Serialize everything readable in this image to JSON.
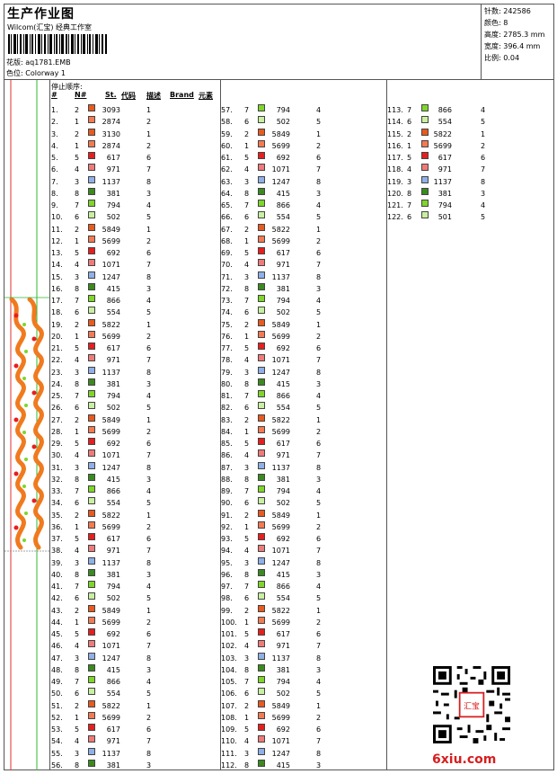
{
  "header": {
    "title": "生产作业图",
    "studio": "Wilcom(汇宝) 经典工作室",
    "design_label": "花版:",
    "design_value": "aq1781.EMB",
    "colorway_label": "色位:",
    "colorway_value": "Colorway 1"
  },
  "stats": [
    {
      "label": "针数:",
      "value": "242586"
    },
    {
      "label": "颜色:",
      "value": "8"
    },
    {
      "label": "高度:",
      "value": "2785.3 mm"
    },
    {
      "label": "宽度:",
      "value": "396.4 mm"
    },
    {
      "label": "比例:",
      "value": "0.04"
    }
  ],
  "table": {
    "caption": "停止顺序:",
    "col_hash": "#",
    "col_n": "N#",
    "col_st": "St.",
    "col_code": "代码",
    "col_desc": "描述",
    "col_brand": "Brand",
    "col_elem": "元素"
  },
  "colors": {
    "1": "#f47a52",
    "2": "#e85a1e",
    "3": "#8fb0e8",
    "4": "#f07a7a",
    "5": "#e81e1e",
    "6": "#c8f0a0",
    "7": "#7ed628",
    "8": "#3a8a1e"
  },
  "stops": [
    [
      1,
      2,
      "3093",
      1
    ],
    [
      2,
      1,
      "2874",
      2
    ],
    [
      3,
      2,
      "3130",
      1
    ],
    [
      4,
      1,
      "2874",
      2
    ],
    [
      5,
      5,
      "617",
      6
    ],
    [
      6,
      4,
      "971",
      7
    ],
    [
      7,
      3,
      "1137",
      8
    ],
    [
      8,
      8,
      "381",
      3
    ],
    [
      9,
      7,
      "794",
      4
    ],
    [
      10,
      6,
      "502",
      5
    ],
    [
      11,
      2,
      "5849",
      1
    ],
    [
      12,
      1,
      "5699",
      2
    ],
    [
      13,
      5,
      "692",
      6
    ],
    [
      14,
      4,
      "1071",
      7
    ],
    [
      15,
      3,
      "1247",
      8
    ],
    [
      16,
      8,
      "415",
      3
    ],
    [
      17,
      7,
      "866",
      4
    ],
    [
      18,
      6,
      "554",
      5
    ],
    [
      19,
      2,
      "5822",
      1
    ],
    [
      20,
      1,
      "5699",
      2
    ],
    [
      21,
      5,
      "617",
      6
    ],
    [
      22,
      4,
      "971",
      7
    ],
    [
      23,
      3,
      "1137",
      8
    ],
    [
      24,
      8,
      "381",
      3
    ],
    [
      25,
      7,
      "794",
      4
    ],
    [
      26,
      6,
      "502",
      5
    ],
    [
      27,
      2,
      "5849",
      1
    ],
    [
      28,
      1,
      "5699",
      2
    ],
    [
      29,
      5,
      "692",
      6
    ],
    [
      30,
      4,
      "1071",
      7
    ],
    [
      31,
      3,
      "1247",
      8
    ],
    [
      32,
      8,
      "415",
      3
    ],
    [
      33,
      7,
      "866",
      4
    ],
    [
      34,
      6,
      "554",
      5
    ],
    [
      35,
      2,
      "5822",
      1
    ],
    [
      36,
      1,
      "5699",
      2
    ],
    [
      37,
      5,
      "617",
      6
    ],
    [
      38,
      4,
      "971",
      7
    ],
    [
      39,
      3,
      "1137",
      8
    ],
    [
      40,
      8,
      "381",
      3
    ],
    [
      41,
      7,
      "794",
      4
    ],
    [
      42,
      6,
      "502",
      5
    ],
    [
      43,
      2,
      "5849",
      1
    ],
    [
      44,
      1,
      "5699",
      2
    ],
    [
      45,
      5,
      "692",
      6
    ],
    [
      46,
      4,
      "1071",
      7
    ],
    [
      47,
      3,
      "1247",
      8
    ],
    [
      48,
      8,
      "415",
      3
    ],
    [
      49,
      7,
      "866",
      4
    ],
    [
      50,
      6,
      "554",
      5
    ],
    [
      51,
      2,
      "5822",
      1
    ],
    [
      52,
      1,
      "5699",
      2
    ],
    [
      53,
      5,
      "617",
      6
    ],
    [
      54,
      4,
      "971",
      7
    ],
    [
      55,
      3,
      "1137",
      8
    ],
    [
      56,
      8,
      "381",
      3
    ],
    [
      57,
      7,
      "794",
      4
    ],
    [
      58,
      6,
      "502",
      5
    ],
    [
      59,
      2,
      "5849",
      1
    ],
    [
      60,
      1,
      "5699",
      2
    ],
    [
      61,
      5,
      "692",
      6
    ],
    [
      62,
      4,
      "1071",
      7
    ],
    [
      63,
      3,
      "1247",
      8
    ],
    [
      64,
      8,
      "415",
      3
    ],
    [
      65,
      7,
      "866",
      4
    ],
    [
      66,
      6,
      "554",
      5
    ],
    [
      67,
      2,
      "5822",
      1
    ],
    [
      68,
      1,
      "5699",
      2
    ],
    [
      69,
      5,
      "617",
      6
    ],
    [
      70,
      4,
      "971",
      7
    ],
    [
      71,
      3,
      "1137",
      8
    ],
    [
      72,
      8,
      "381",
      3
    ],
    [
      73,
      7,
      "794",
      4
    ],
    [
      74,
      6,
      "502",
      5
    ],
    [
      75,
      2,
      "5849",
      1
    ],
    [
      76,
      1,
      "5699",
      2
    ],
    [
      77,
      5,
      "692",
      6
    ],
    [
      78,
      4,
      "1071",
      7
    ],
    [
      79,
      3,
      "1247",
      8
    ],
    [
      80,
      8,
      "415",
      3
    ],
    [
      81,
      7,
      "866",
      4
    ],
    [
      82,
      6,
      "554",
      5
    ],
    [
      83,
      2,
      "5822",
      1
    ],
    [
      84,
      1,
      "5699",
      2
    ],
    [
      85,
      5,
      "617",
      6
    ],
    [
      86,
      4,
      "971",
      7
    ],
    [
      87,
      3,
      "1137",
      8
    ],
    [
      88,
      8,
      "381",
      3
    ],
    [
      89,
      7,
      "794",
      4
    ],
    [
      90,
      6,
      "502",
      5
    ],
    [
      91,
      2,
      "5849",
      1
    ],
    [
      92,
      1,
      "5699",
      2
    ],
    [
      93,
      5,
      "692",
      6
    ],
    [
      94,
      4,
      "1071",
      7
    ],
    [
      95,
      3,
      "1247",
      8
    ],
    [
      96,
      8,
      "415",
      3
    ],
    [
      97,
      7,
      "866",
      4
    ],
    [
      98,
      6,
      "554",
      5
    ],
    [
      99,
      2,
      "5822",
      1
    ],
    [
      100,
      1,
      "5699",
      2
    ],
    [
      101,
      5,
      "617",
      6
    ],
    [
      102,
      4,
      "971",
      7
    ],
    [
      103,
      3,
      "1137",
      8
    ],
    [
      104,
      8,
      "381",
      3
    ],
    [
      105,
      7,
      "794",
      4
    ],
    [
      106,
      6,
      "502",
      5
    ],
    [
      107,
      2,
      "5849",
      1
    ],
    [
      108,
      1,
      "5699",
      2
    ],
    [
      109,
      5,
      "692",
      6
    ],
    [
      110,
      4,
      "1071",
      7
    ],
    [
      111,
      3,
      "1247",
      8
    ],
    [
      112,
      8,
      "415",
      3
    ],
    [
      113,
      7,
      "866",
      4
    ],
    [
      114,
      6,
      "554",
      5
    ],
    [
      115,
      2,
      "5822",
      1
    ],
    [
      116,
      1,
      "5699",
      2
    ],
    [
      117,
      5,
      "617",
      6
    ],
    [
      118,
      4,
      "971",
      7
    ],
    [
      119,
      3,
      "1137",
      8
    ],
    [
      120,
      8,
      "381",
      3
    ],
    [
      121,
      7,
      "794",
      4
    ],
    [
      122,
      6,
      "501",
      5
    ]
  ],
  "watermark": "6xiu.com",
  "seal_text": "汇宝经典"
}
